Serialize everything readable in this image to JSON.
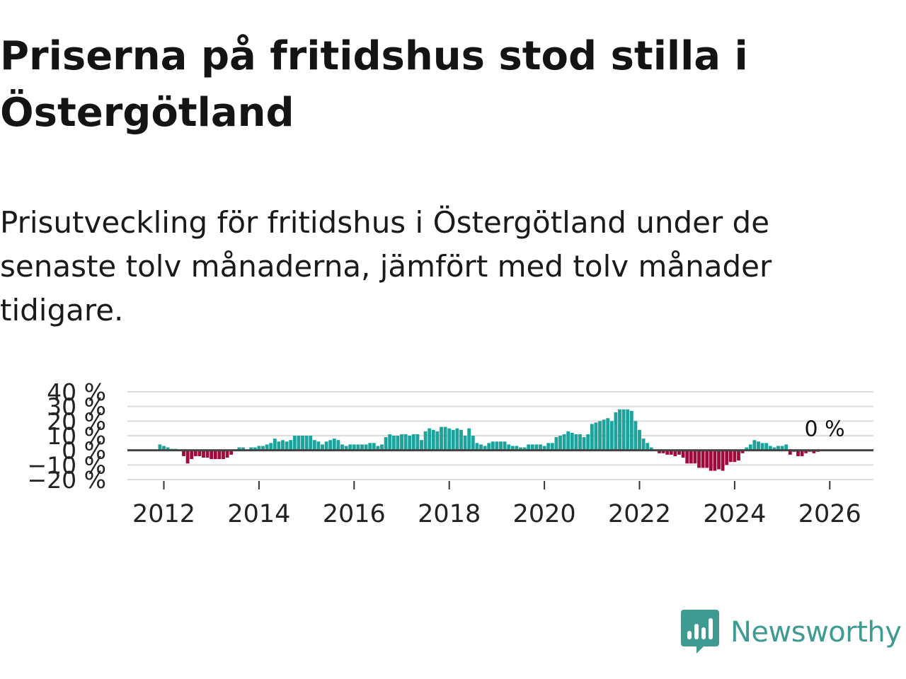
{
  "title": "Priserna på fritidshus stod stilla i Östergötland",
  "subtitle": "Prisutveckling för fritidshus i Östergötland under de senaste tolv månaderna, jämfört med tolv månader tidigare.",
  "brand": {
    "name": "Newsworthy",
    "icon": "newsworthy-logo-icon",
    "color": "#3f9b92"
  },
  "chart_data": {
    "type": "bar",
    "ylim": [
      -20,
      40
    ],
    "yticks": [
      {
        "value": 40,
        "label": "40 %"
      },
      {
        "value": 30,
        "label": "30 %"
      },
      {
        "value": 20,
        "label": "20 %"
      },
      {
        "value": 10,
        "label": "10 %"
      },
      {
        "value": 0,
        "label": "0 %"
      },
      {
        "value": -10,
        "label": "−10 %"
      },
      {
        "value": -20,
        "label": "−20 %"
      }
    ],
    "xticks": [
      {
        "year": 2012,
        "label": "2012"
      },
      {
        "year": 2014,
        "label": "2014"
      },
      {
        "year": 2016,
        "label": "2016"
      },
      {
        "year": 2018,
        "label": "2018"
      },
      {
        "year": 2020,
        "label": "2020"
      },
      {
        "year": 2022,
        "label": "2022"
      },
      {
        "year": 2024,
        "label": "2024"
      },
      {
        "year": 2026,
        "label": "2026"
      }
    ],
    "grid": true,
    "positive_color": "#1ba39c",
    "negative_color": "#a10b3b",
    "last_value_label": "0 %",
    "start": "2011-12",
    "values": [
      4,
      3,
      2,
      1,
      1,
      0,
      -4,
      -9,
      -6,
      -4,
      -4,
      -5,
      -5,
      -6,
      -6,
      -6,
      -6,
      -5,
      -3,
      0,
      2,
      2,
      0,
      2,
      2,
      3,
      3,
      4,
      5,
      8,
      6,
      7,
      6,
      7,
      10,
      10,
      10,
      10,
      10,
      7,
      6,
      4,
      6,
      7,
      8,
      7,
      4,
      3,
      4,
      4,
      4,
      4,
      4,
      5,
      5,
      3,
      4,
      9,
      11,
      10,
      10,
      11,
      11,
      10,
      11,
      11,
      7,
      13,
      15,
      14,
      13,
      16,
      16,
      15,
      14,
      15,
      14,
      10,
      15,
      10,
      5,
      4,
      3,
      5,
      6,
      6,
      6,
      6,
      4,
      3,
      3,
      2,
      2,
      4,
      4,
      4,
      4,
      3,
      5,
      5,
      9,
      10,
      11,
      13,
      12,
      11,
      11,
      9,
      11,
      18,
      19,
      20,
      21,
      22,
      20,
      26,
      28,
      28,
      28,
      27,
      20,
      14,
      8,
      5,
      2,
      0,
      -2,
      -2,
      -3,
      -3,
      -4,
      -3,
      -5,
      -9,
      -9,
      -9,
      -12,
      -12,
      -12,
      -14,
      -14,
      -13,
      -14,
      -10,
      -8,
      -8,
      -7,
      -2,
      2,
      4,
      7,
      6,
      5,
      5,
      3,
      2,
      3,
      3,
      4,
      -3,
      -1,
      -4,
      -4,
      -2,
      -1,
      -2,
      -1,
      0
    ]
  }
}
